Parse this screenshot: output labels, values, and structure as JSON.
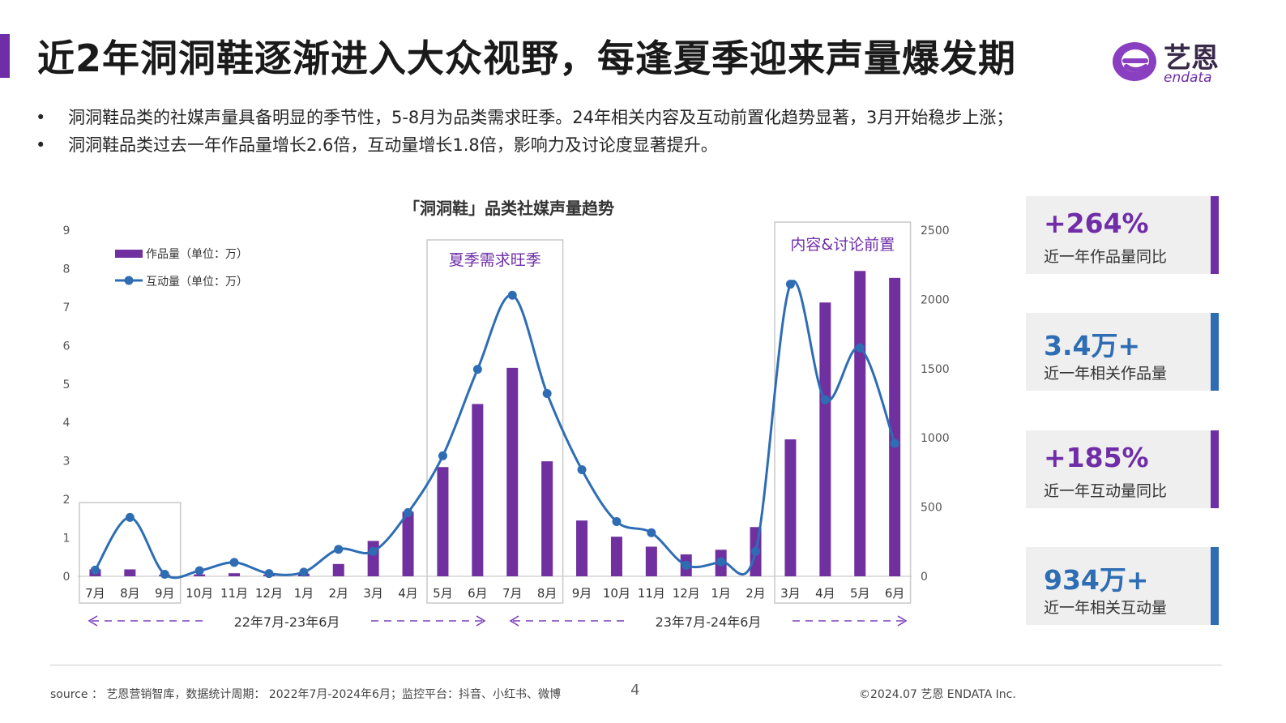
{
  "header": {
    "title": "近2年洞洞鞋逐渐进入大众视野，每逢夏季迎来声量爆发期",
    "logo_name": "艺恩",
    "logo_sub": "endata"
  },
  "bullets": [
    "洞洞鞋品类的社媒声量具备明显的季节性，5-8月为品类需求旺季。24年相关内容及互动前置化趋势显著，3月开始稳步上涨；",
    "洞洞鞋品类过去一年作品量增长2.6倍，互动量增长1.8倍，影响力及讨论度显著提升。"
  ],
  "colors": {
    "accent": "#6f2da8",
    "bar": "#7030a0",
    "line": "#2e6db4",
    "blue_accent": "#2e6db4"
  },
  "chart_data": {
    "type": "bar",
    "title": "「洞洞鞋」品类社媒声量趋势",
    "categories": [
      "7月",
      "8月",
      "9月",
      "10月",
      "11月",
      "12月",
      "1月",
      "2月",
      "3月",
      "4月",
      "5月",
      "6月",
      "7月",
      "8月",
      "9月",
      "10月",
      "11月",
      "12月",
      "1月",
      "2月",
      "3月",
      "4月",
      "5月",
      "6月"
    ],
    "y_left_ticks": [
      "0",
      "1",
      "2",
      "3",
      "4",
      "5",
      "6",
      "7",
      "8",
      "9"
    ],
    "y_left_range": [
      0,
      9
    ],
    "y_right_ticks": [
      "0",
      "500",
      "1000",
      "1500",
      "2000",
      "2500"
    ],
    "y_right_range": [
      0,
      2500
    ],
    "legend_position": "top-left",
    "series": [
      {
        "name": "作品量（单位：万）",
        "type": "bar",
        "axis": "left",
        "values": [
          0.18,
          0.18,
          0.04,
          0.05,
          0.08,
          0.04,
          0.07,
          0.32,
          0.92,
          1.68,
          2.84,
          4.48,
          5.42,
          2.99,
          1.45,
          1.03,
          0.77,
          0.57,
          0.69,
          1.28,
          3.56,
          7.12,
          7.94,
          7.76
        ]
      },
      {
        "name": "互动量（单位：万）",
        "type": "line",
        "axis": "right",
        "values": [
          45,
          425,
          15,
          40,
          100,
          20,
          30,
          195,
          180,
          460,
          870,
          1495,
          2030,
          1320,
          770,
          395,
          315,
          80,
          105,
          180,
          2110,
          1275,
          1650,
          960
        ]
      }
    ],
    "annotations": [
      "夏季需求旺季",
      "内容&讨论前置"
    ],
    "period_labels": [
      "22年7月-23年6月",
      "23年7月-24年6月"
    ]
  },
  "cards": [
    {
      "value": "+264%",
      "label": "近一年作品量同比",
      "color": "#6f2da8"
    },
    {
      "value": "3.4万+",
      "label": "近一年相关作品量",
      "color": "#2e6db4"
    },
    {
      "value": "+185%",
      "label": "近一年互动量同比",
      "color": "#6f2da8"
    },
    {
      "value": "934万+",
      "label": "近一年相关互动量",
      "color": "#2e6db4"
    }
  ],
  "footer": {
    "source": "source ： 艺恩营销智库，数据统计周期： 2022年7月-2024年6月；监控平台：抖音、小红书、微博",
    "page": "4",
    "copyright": "©2024.07 艺恩 ENDATA Inc."
  }
}
